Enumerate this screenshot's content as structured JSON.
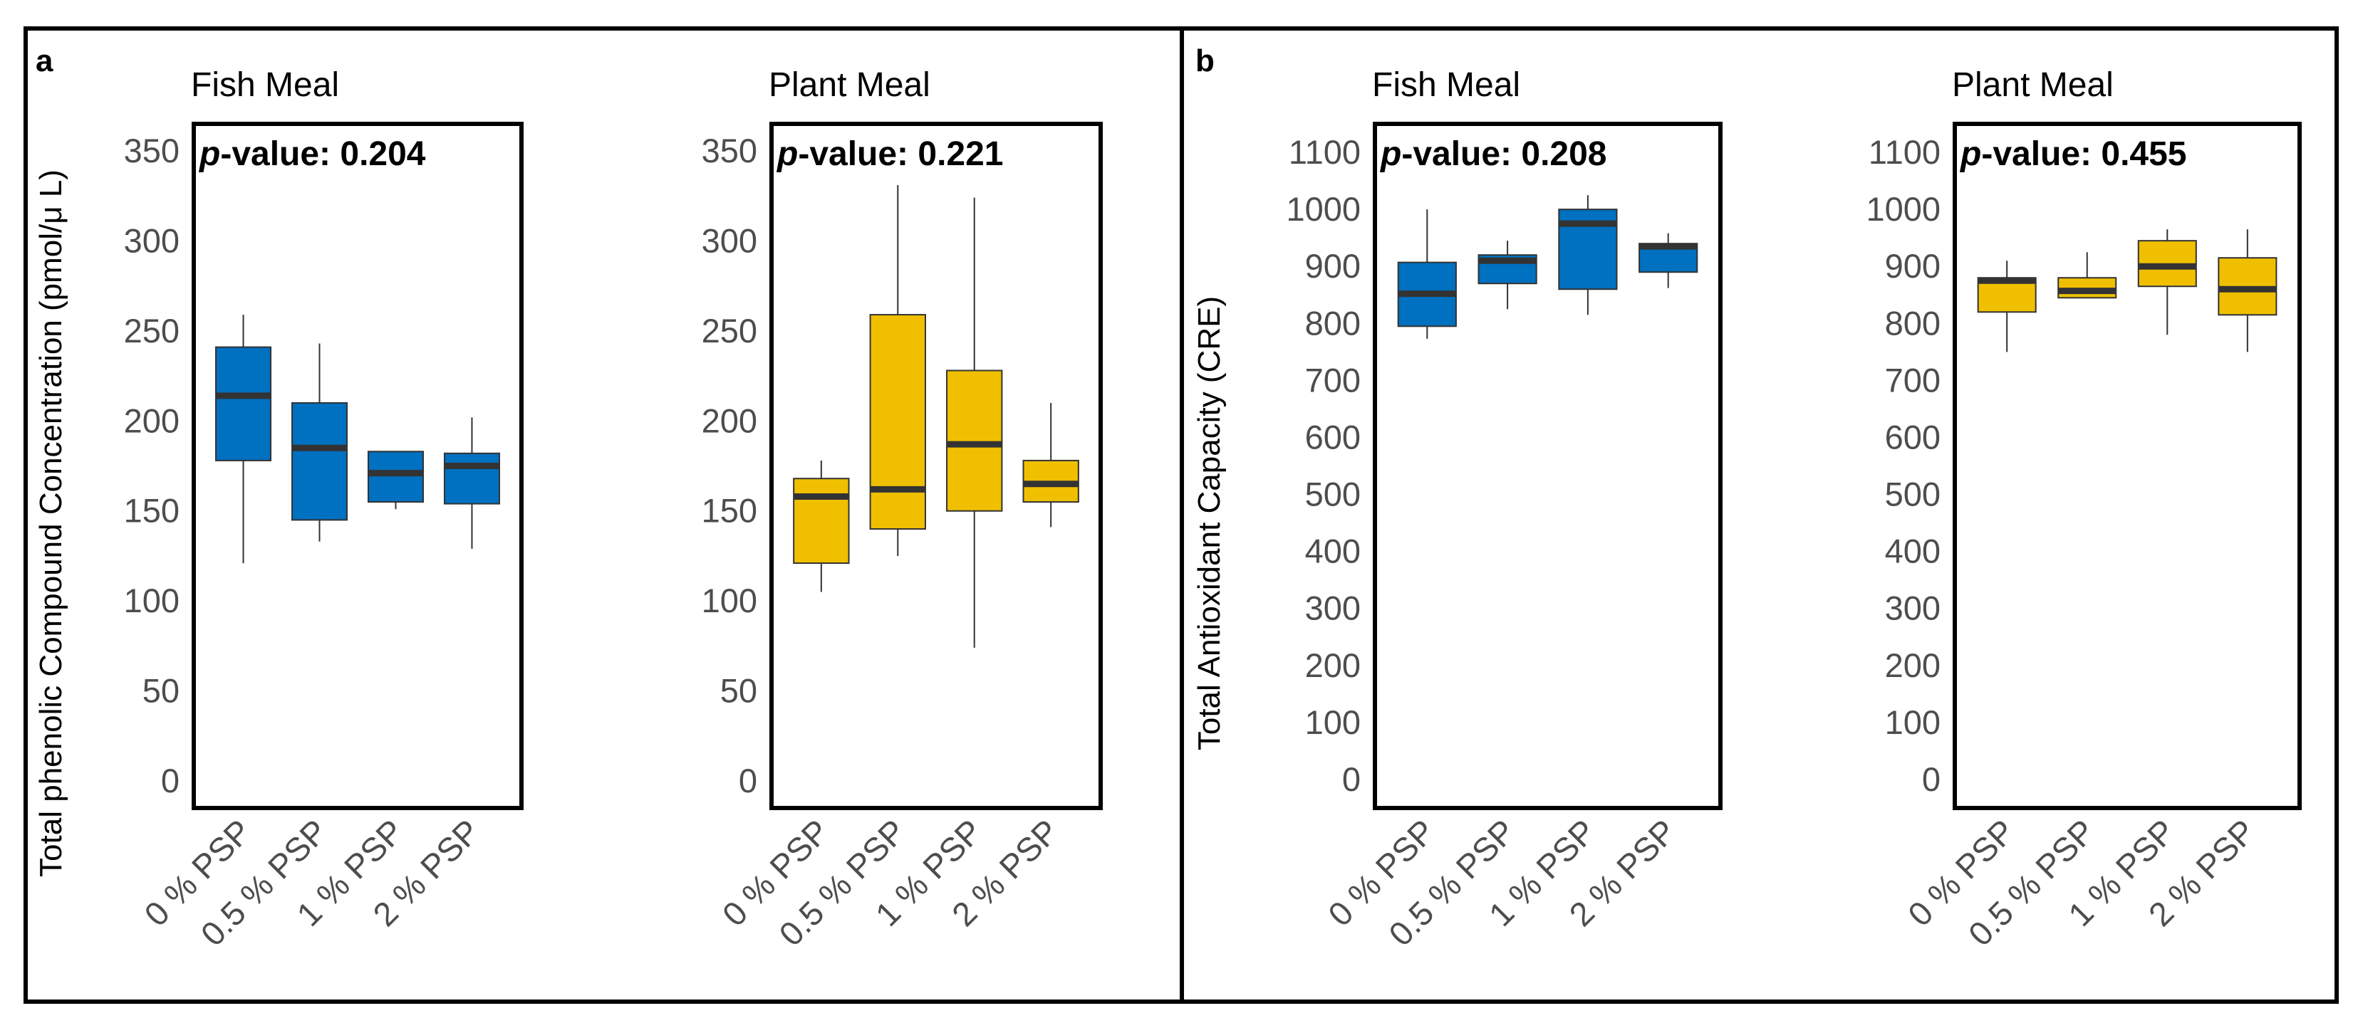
{
  "figure": {
    "panel_a": {
      "letter": "a",
      "ylabel": "Total phenolic Compound Concentration (pmol/μ L)"
    },
    "panel_b": {
      "letter": "b",
      "ylabel": "Total Antioxidant Capacity (CRE)"
    }
  },
  "colors": {
    "fish": "#0070C0",
    "plant": "#F0C000",
    "median": "#333333",
    "axis": "#000000",
    "tick_text": "#4d4d4d"
  },
  "chart_data": [
    {
      "type": "box",
      "title": "Fish Meal",
      "p_label": "p",
      "p_rest": "-value: 0.204",
      "ylabel": "Total phenolic Compound Concentration (pmol/μ L)",
      "ylim": [
        -15,
        365
      ],
      "yticks": [
        "0",
        "50",
        "100",
        "150",
        "200",
        "250",
        "300",
        "350"
      ],
      "categories": [
        "0 % PSP",
        "0.5 % PSP",
        "1 % PSP",
        "2 % PSP"
      ],
      "color": "#0070C0",
      "boxes": [
        {
          "min": 121,
          "q1": 178,
          "median": 214,
          "q3": 241,
          "max": 259
        },
        {
          "min": 133,
          "q1": 145,
          "median": 185,
          "q3": 210,
          "max": 243
        },
        {
          "min": 151,
          "q1": 155,
          "median": 171,
          "q3": 183,
          "max": 183
        },
        {
          "min": 129,
          "q1": 154,
          "median": 175,
          "q3": 182,
          "max": 202
        }
      ]
    },
    {
      "type": "box",
      "title": "Plant Meal",
      "p_label": "p",
      "p_rest": "-value: 0.221",
      "ylim": [
        -15,
        365
      ],
      "yticks": [
        "0",
        "50",
        "100",
        "150",
        "200",
        "250",
        "300",
        "350"
      ],
      "categories": [
        "0 % PSP",
        "0.5 % PSP",
        "1 % PSP",
        "2 % PSP"
      ],
      "color": "#F0C000",
      "boxes": [
        {
          "min": 105,
          "q1": 121,
          "median": 158,
          "q3": 168,
          "max": 178
        },
        {
          "min": 125,
          "q1": 140,
          "median": 162,
          "q3": 259,
          "max": 331
        },
        {
          "min": 74,
          "q1": 150,
          "median": 187,
          "q3": 228,
          "max": 324
        },
        {
          "min": 141,
          "q1": 155,
          "median": 165,
          "q3": 178,
          "max": 210
        }
      ]
    },
    {
      "type": "box",
      "title": "Fish Meal",
      "p_label": "p",
      "p_rest": "-value: 0.208",
      "ylabel": "Total Antioxidant Capacity (CRE)",
      "ylim": [
        -50,
        1150
      ],
      "yticks": [
        "0",
        "100",
        "200",
        "300",
        "400",
        "500",
        "600",
        "700",
        "800",
        "900",
        "1000",
        "1100"
      ],
      "categories": [
        "0 % PSP",
        "0.5 % PSP",
        "1 % PSP",
        "2 % PSP"
      ],
      "color": "#0070C0",
      "boxes": [
        {
          "min": 773,
          "q1": 795,
          "median": 852,
          "q3": 907,
          "max": 1000
        },
        {
          "min": 825,
          "q1": 870,
          "median": 910,
          "q3": 920,
          "max": 945
        },
        {
          "min": 815,
          "q1": 860,
          "median": 975,
          "q3": 1000,
          "max": 1025
        },
        {
          "min": 862,
          "q1": 890,
          "median": 935,
          "q3": 940,
          "max": 958
        }
      ]
    },
    {
      "type": "box",
      "title": "Plant Meal",
      "p_label": "p",
      "p_rest": "-value: 0.455",
      "ylim": [
        -50,
        1150
      ],
      "yticks": [
        "0",
        "100",
        "200",
        "300",
        "400",
        "500",
        "600",
        "700",
        "800",
        "900",
        "1000",
        "1100"
      ],
      "categories": [
        "0 % PSP",
        "0.5 % PSP",
        "1 % PSP",
        "2 % PSP"
      ],
      "color": "#F0C000",
      "boxes": [
        {
          "min": 750,
          "q1": 820,
          "median": 875,
          "q3": 880,
          "max": 910
        },
        {
          "min": 845,
          "q1": 845,
          "median": 857,
          "q3": 880,
          "max": 925
        },
        {
          "min": 780,
          "q1": 865,
          "median": 900,
          "q3": 945,
          "max": 965
        },
        {
          "min": 750,
          "q1": 815,
          "median": 860,
          "q3": 915,
          "max": 965
        }
      ]
    }
  ]
}
